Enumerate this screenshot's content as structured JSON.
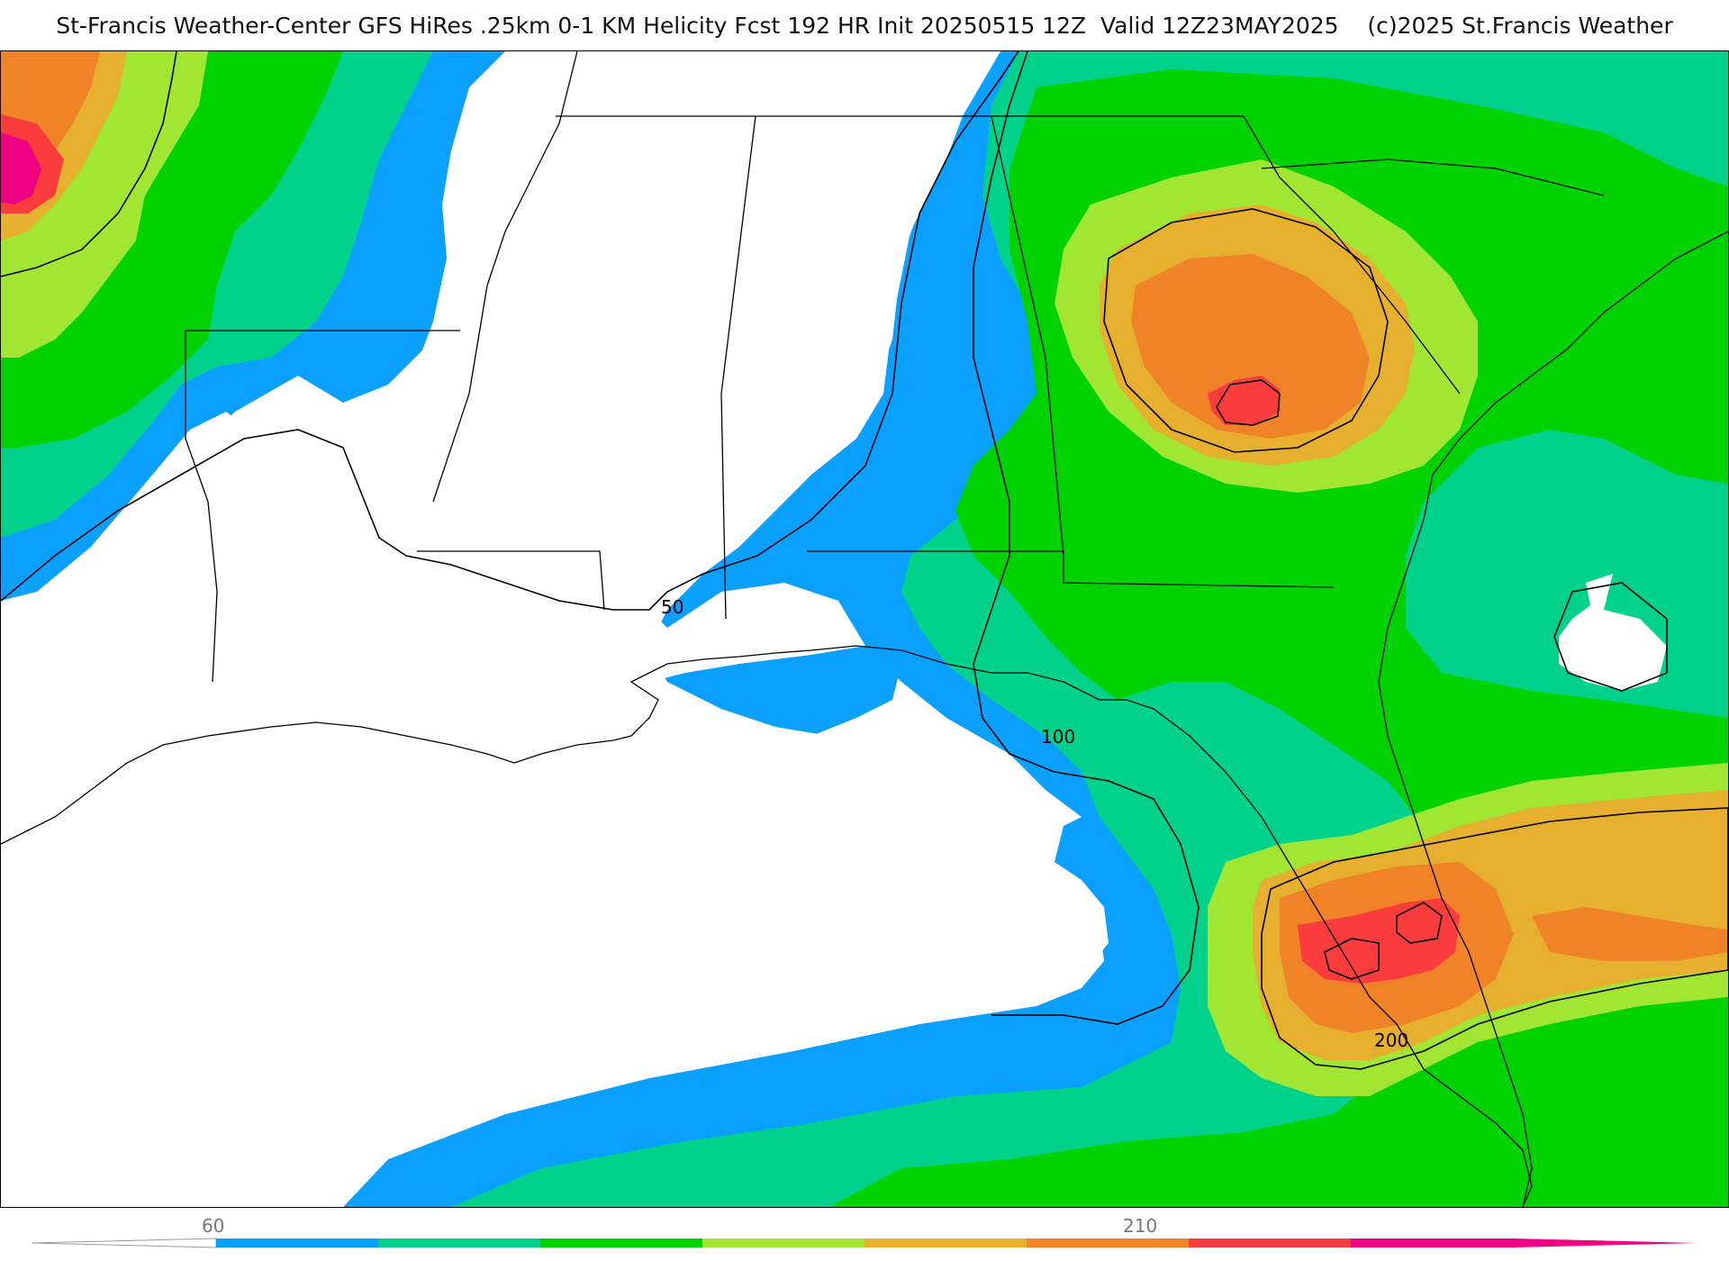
{
  "title": "St-Francis Weather-Center GFS HiRes .25km 0-1 KM Helicity Fcst 192 HR Init 20250515 12Z  Valid 12Z23MAY2025    (c)2025 St.Francis Weather",
  "map": {
    "product": "0-1 KM Helicity",
    "contour_labels": [
      "50",
      "100",
      "200"
    ],
    "shade_colors": {
      "lt60": "#ffffff",
      "c60": "#0aa0ff",
      "c90": "#00d28c",
      "c120": "#00d200",
      "c150": "#a0e632",
      "c180": "#e6af2d",
      "c210": "#f08228",
      "c240": "#fa3c3c",
      "c270": "#f00082"
    }
  },
  "colorbar": {
    "tick_labels": [
      "60",
      "210"
    ],
    "colors": [
      "#0aa0ff",
      "#00d28c",
      "#00d200",
      "#a0e632",
      "#e6af2d",
      "#f08228",
      "#fa3c3c",
      "#f00082"
    ]
  }
}
